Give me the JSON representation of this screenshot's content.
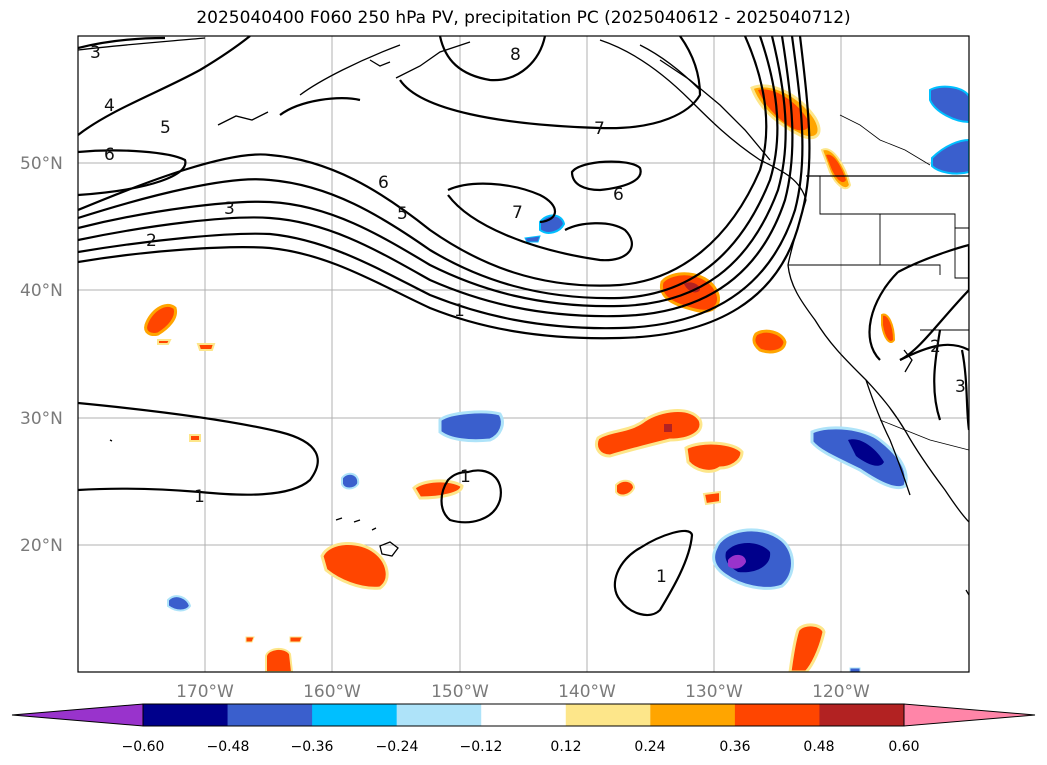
{
  "title": "2025040400 F060 250 hPa PV, precipitation PC (2025040612 - 2025040712)",
  "map": {
    "lat_labels": [
      "50°N",
      "40°N",
      "30°N",
      "20°N"
    ],
    "lon_labels": [
      "170°W",
      "160°W",
      "150°W",
      "140°W",
      "130°W",
      "120°W"
    ],
    "contour_labels": [
      "3",
      "4",
      "5",
      "6",
      "8",
      "7",
      "6",
      "5",
      "3",
      "2",
      "7",
      "6",
      "1",
      "1",
      "1",
      "1",
      "2",
      "3"
    ]
  },
  "colorbar": {
    "colors": [
      "#9933cc",
      "#00008b",
      "#3a5fcd",
      "#00bfff",
      "#aee3f9",
      "#ffffff",
      "#fde68a",
      "#ffa500",
      "#ff4500",
      "#b22222",
      "#ff85a8"
    ],
    "ticks": [
      "−0.60",
      "−0.48",
      "−0.36",
      "−0.24",
      "−0.12",
      "0.12",
      "0.24",
      "0.36",
      "0.48",
      "0.60"
    ]
  }
}
